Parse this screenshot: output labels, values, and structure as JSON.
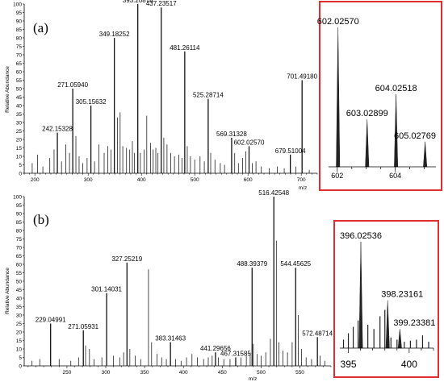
{
  "chart_data": [
    {
      "id": "a",
      "type": "bar",
      "panel_label": "(a)",
      "xlabel": "m/z",
      "ylabel": "Relative Abundance",
      "xlim": [
        180,
        730
      ],
      "ylim": [
        0,
        100
      ],
      "xticks": [
        200,
        300,
        400,
        500,
        600,
        700
      ],
      "yticks": [
        0,
        5,
        10,
        15,
        20,
        25,
        30,
        35,
        40,
        45,
        50,
        55,
        60,
        65,
        70,
        75,
        80,
        85,
        90,
        95,
        100
      ],
      "labeled_peaks": [
        {
          "label": "393.20878",
          "x": 393.2,
          "y": 100
        },
        {
          "label": "437.23517",
          "x": 437.2,
          "y": 98
        },
        {
          "label": "349.18252",
          "x": 349.2,
          "y": 80
        },
        {
          "label": "481.26114",
          "x": 481.3,
          "y": 72
        },
        {
          "label": "701.49180",
          "x": 701.5,
          "y": 55
        },
        {
          "label": "271.05940",
          "x": 271.1,
          "y": 50
        },
        {
          "label": "305.15632",
          "x": 305.2,
          "y": 40
        },
        {
          "label": "525.28714",
          "x": 525.3,
          "y": 44
        },
        {
          "label": "242.15328",
          "x": 242.2,
          "y": 24
        },
        {
          "label": "569.31328",
          "x": 569.3,
          "y": 21
        },
        {
          "label": "602.02570",
          "x": 602.0,
          "y": 16
        },
        {
          "label": "679.51004",
          "x": 679.5,
          "y": 11
        }
      ],
      "minor_peaks": [
        {
          "x": 195,
          "y": 6
        },
        {
          "x": 205,
          "y": 11
        },
        {
          "x": 215,
          "y": 4
        },
        {
          "x": 228,
          "y": 9
        },
        {
          "x": 236,
          "y": 14
        },
        {
          "x": 250,
          "y": 7
        },
        {
          "x": 258,
          "y": 17
        },
        {
          "x": 265,
          "y": 12
        },
        {
          "x": 277,
          "y": 22
        },
        {
          "x": 283,
          "y": 10
        },
        {
          "x": 290,
          "y": 6
        },
        {
          "x": 298,
          "y": 9
        },
        {
          "x": 312,
          "y": 7
        },
        {
          "x": 320,
          "y": 17
        },
        {
          "x": 330,
          "y": 12
        },
        {
          "x": 337,
          "y": 16
        },
        {
          "x": 343,
          "y": 14
        },
        {
          "x": 355,
          "y": 33
        },
        {
          "x": 360,
          "y": 36
        },
        {
          "x": 365,
          "y": 16
        },
        {
          "x": 372,
          "y": 15
        },
        {
          "x": 378,
          "y": 14
        },
        {
          "x": 383,
          "y": 19
        },
        {
          "x": 387,
          "y": 12
        },
        {
          "x": 398,
          "y": 12
        },
        {
          "x": 405,
          "y": 14
        },
        {
          "x": 410,
          "y": 34
        },
        {
          "x": 417,
          "y": 18
        },
        {
          "x": 422,
          "y": 14
        },
        {
          "x": 427,
          "y": 15
        },
        {
          "x": 431,
          "y": 12
        },
        {
          "x": 442,
          "y": 21
        },
        {
          "x": 448,
          "y": 17
        },
        {
          "x": 455,
          "y": 12
        },
        {
          "x": 462,
          "y": 10
        },
        {
          "x": 470,
          "y": 11
        },
        {
          "x": 476,
          "y": 9
        },
        {
          "x": 486,
          "y": 16
        },
        {
          "x": 492,
          "y": 10
        },
        {
          "x": 500,
          "y": 8
        },
        {
          "x": 510,
          "y": 10
        },
        {
          "x": 518,
          "y": 7
        },
        {
          "x": 530,
          "y": 12
        },
        {
          "x": 538,
          "y": 8
        },
        {
          "x": 548,
          "y": 6
        },
        {
          "x": 556,
          "y": 5
        },
        {
          "x": 575,
          "y": 12
        },
        {
          "x": 582,
          "y": 6
        },
        {
          "x": 590,
          "y": 9
        },
        {
          "x": 596,
          "y": 13
        },
        {
          "x": 608,
          "y": 6
        },
        {
          "x": 615,
          "y": 7
        },
        {
          "x": 625,
          "y": 4
        },
        {
          "x": 640,
          "y": 3
        },
        {
          "x": 655,
          "y": 4
        },
        {
          "x": 668,
          "y": 3
        },
        {
          "x": 690,
          "y": 4
        },
        {
          "x": 715,
          "y": 2
        }
      ],
      "inset": {
        "xlim": [
          601.7,
          605.4
        ],
        "ticks": [
          602,
          604
        ],
        "peaks": [
          {
            "label": "602.02570",
            "x": 602.0257,
            "y": 100
          },
          {
            "label": "603.02899",
            "x": 603.02899,
            "y": 34
          },
          {
            "label": "604.02518",
            "x": 604.02518,
            "y": 52
          },
          {
            "label": "605.02769",
            "x": 605.02769,
            "y": 18
          }
        ]
      }
    },
    {
      "id": "b",
      "type": "bar",
      "panel_label": "(b)",
      "xlabel": "m/z",
      "ylabel": "Relative Abundance",
      "xlim": [
        195,
        590
      ],
      "ylim": [
        0,
        100
      ],
      "xticks": [
        250,
        300,
        350,
        400,
        450,
        500,
        550
      ],
      "yticks": [
        0,
        5,
        10,
        15,
        20,
        25,
        30,
        35,
        40,
        45,
        50,
        55,
        60,
        65,
        70,
        75,
        80,
        85,
        90,
        95,
        100
      ],
      "labeled_peaks": [
        {
          "label": "516.42548",
          "x": 516.4,
          "y": 100
        },
        {
          "label": "327.25219",
          "x": 327.3,
          "y": 61
        },
        {
          "label": "488.39379",
          "x": 488.4,
          "y": 58
        },
        {
          "label": "544.45625",
          "x": 544.5,
          "y": 58
        },
        {
          "label": "301.14031",
          "x": 301.1,
          "y": 43
        },
        {
          "label": "229.04991",
          "x": 229.0,
          "y": 25
        },
        {
          "label": "271.05931",
          "x": 271.1,
          "y": 21
        },
        {
          "label": "383.31463",
          "x": 383.3,
          "y": 14
        },
        {
          "label": "572.48714",
          "x": 572.5,
          "y": 17
        },
        {
          "label": "441.29656",
          "x": 441.3,
          "y": 8
        },
        {
          "label": "467.31585",
          "x": 467.3,
          "y": 5
        }
      ],
      "minor_peaks": [
        {
          "x": 205,
          "y": 3
        },
        {
          "x": 215,
          "y": 4
        },
        {
          "x": 240,
          "y": 4
        },
        {
          "x": 255,
          "y": 3
        },
        {
          "x": 265,
          "y": 5
        },
        {
          "x": 274,
          "y": 12
        },
        {
          "x": 279,
          "y": 10
        },
        {
          "x": 285,
          "y": 4
        },
        {
          "x": 295,
          "y": 5
        },
        {
          "x": 310,
          "y": 6
        },
        {
          "x": 318,
          "y": 5
        },
        {
          "x": 323,
          "y": 8
        },
        {
          "x": 331,
          "y": 10
        },
        {
          "x": 338,
          "y": 6
        },
        {
          "x": 345,
          "y": 4
        },
        {
          "x": 355,
          "y": 57
        },
        {
          "x": 359,
          "y": 14
        },
        {
          "x": 366,
          "y": 7
        },
        {
          "x": 372,
          "y": 5
        },
        {
          "x": 378,
          "y": 4
        },
        {
          "x": 390,
          "y": 4
        },
        {
          "x": 397,
          "y": 3
        },
        {
          "x": 404,
          "y": 5
        },
        {
          "x": 411,
          "y": 7
        },
        {
          "x": 418,
          "y": 5
        },
        {
          "x": 426,
          "y": 4
        },
        {
          "x": 432,
          "y": 5
        },
        {
          "x": 437,
          "y": 6
        },
        {
          "x": 445,
          "y": 5
        },
        {
          "x": 452,
          "y": 4
        },
        {
          "x": 460,
          "y": 4
        },
        {
          "x": 474,
          "y": 5
        },
        {
          "x": 481,
          "y": 6
        },
        {
          "x": 486,
          "y": 8
        },
        {
          "x": 490,
          "y": 13
        },
        {
          "x": 495,
          "y": 7
        },
        {
          "x": 500,
          "y": 6
        },
        {
          "x": 506,
          "y": 8
        },
        {
          "x": 512,
          "y": 16
        },
        {
          "x": 520,
          "y": 74
        },
        {
          "x": 523,
          "y": 14
        },
        {
          "x": 528,
          "y": 9
        },
        {
          "x": 534,
          "y": 8
        },
        {
          "x": 540,
          "y": 14
        },
        {
          "x": 548,
          "y": 30
        },
        {
          "x": 552,
          "y": 10
        },
        {
          "x": 558,
          "y": 5
        },
        {
          "x": 565,
          "y": 4
        },
        {
          "x": 576,
          "y": 6
        },
        {
          "x": 582,
          "y": 3
        }
      ],
      "inset": {
        "xlim": [
          394.3,
          402.0
        ],
        "ticks": [
          395,
          400
        ],
        "peaks": [
          {
            "label": "396.02536",
            "x": 396.02536,
            "y": 100
          },
          {
            "label": "398.23161",
            "x": 398.23161,
            "y": 45
          },
          {
            "label": "399.23381",
            "x": 399.23381,
            "y": 18
          }
        ],
        "minor_peaks": [
          {
            "x": 394.6,
            "y": 8
          },
          {
            "x": 395.0,
            "y": 14
          },
          {
            "x": 395.4,
            "y": 20
          },
          {
            "x": 395.8,
            "y": 26
          },
          {
            "x": 396.6,
            "y": 22
          },
          {
            "x": 397.1,
            "y": 18
          },
          {
            "x": 397.6,
            "y": 30
          },
          {
            "x": 398.0,
            "y": 36
          },
          {
            "x": 398.5,
            "y": 10
          },
          {
            "x": 399.0,
            "y": 8
          },
          {
            "x": 399.6,
            "y": 6
          },
          {
            "x": 400.1,
            "y": 7
          },
          {
            "x": 400.6,
            "y": 8
          },
          {
            "x": 401.1,
            "y": 12
          },
          {
            "x": 401.6,
            "y": 6
          }
        ]
      }
    }
  ]
}
